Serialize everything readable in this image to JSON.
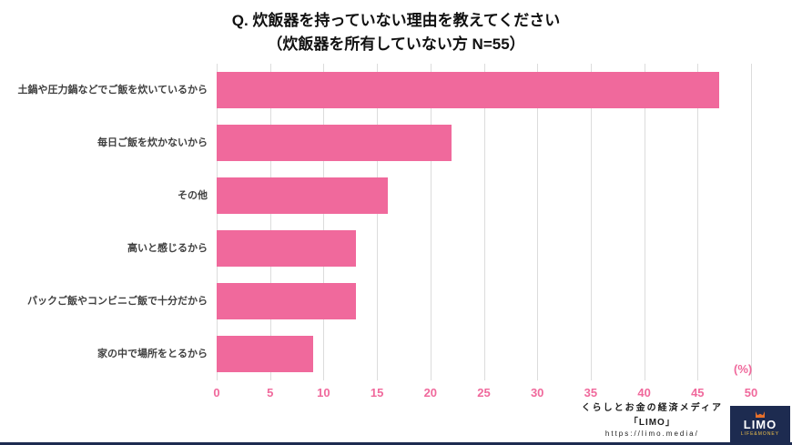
{
  "title": {
    "line1": "Q. 炊飯器を持っていない理由を教えてください",
    "line2": "（炊飯器を所有していない方 N=55）"
  },
  "chart_data": {
    "type": "bar",
    "orientation": "horizontal",
    "title": "Q. 炊飯器を持っていない理由を教えてください（炊飯器を所有していない方 N=55）",
    "categories": [
      "土鍋や圧力鍋などでご飯を炊いているから",
      "毎日ご飯を炊かないから",
      "その他",
      "高いと感じるから",
      "パックご飯やコンビニご飯で十分だから",
      "家の中で場所をとるから"
    ],
    "values": [
      47,
      22,
      16,
      13,
      13,
      9
    ],
    "xlabel": "(%)",
    "ylabel": "",
    "xlim": [
      0,
      50
    ],
    "xticks": [
      0,
      5,
      10,
      15,
      20,
      25,
      30,
      35,
      40,
      45,
      50
    ],
    "grid": true,
    "legend": "none",
    "bar_color": "#f0699c",
    "tick_color": "#f0699c",
    "gridline_color": "#dcdcdc"
  },
  "footer": {
    "credit_line1": "くらしとお金の経済メディア",
    "credit_line2": "「LIMO」",
    "credit_url": "https://limo.media/",
    "logo": {
      "name": "LIMO",
      "tagline": "LIFE&MONEY",
      "background": "#1d2b50",
      "icon": "fox-icon"
    }
  }
}
